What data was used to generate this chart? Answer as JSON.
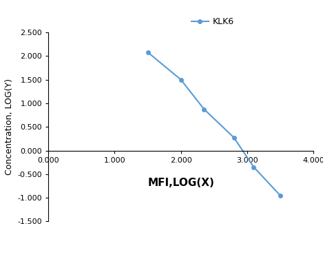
{
  "x": [
    1.5,
    2.0,
    2.35,
    2.8,
    3.1,
    3.5
  ],
  "y": [
    2.08,
    1.5,
    0.875,
    0.275,
    -0.35,
    -0.95
  ],
  "line_color": "#5B9BD5",
  "marker_color": "#5B9BD5",
  "marker_style": "o",
  "marker_size": 4,
  "line_width": 1.5,
  "legend_label": "KLK6",
  "xlabel": "MFI,LOG(X)",
  "ylabel": "Concentration, LOG(Y)",
  "xlim": [
    0.0,
    4.0
  ],
  "ylim": [
    -1.5,
    2.5
  ],
  "xticks": [
    0.0,
    1.0,
    2.0,
    3.0,
    4.0
  ],
  "yticks": [
    -1.5,
    -1.0,
    -0.5,
    0.0,
    0.5,
    1.0,
    1.5,
    2.0,
    2.5
  ],
  "xlabel_fontsize": 11,
  "ylabel_fontsize": 9,
  "tick_fontsize": 8,
  "legend_fontsize": 9,
  "background_color": "#ffffff",
  "spine_color": "#000000"
}
